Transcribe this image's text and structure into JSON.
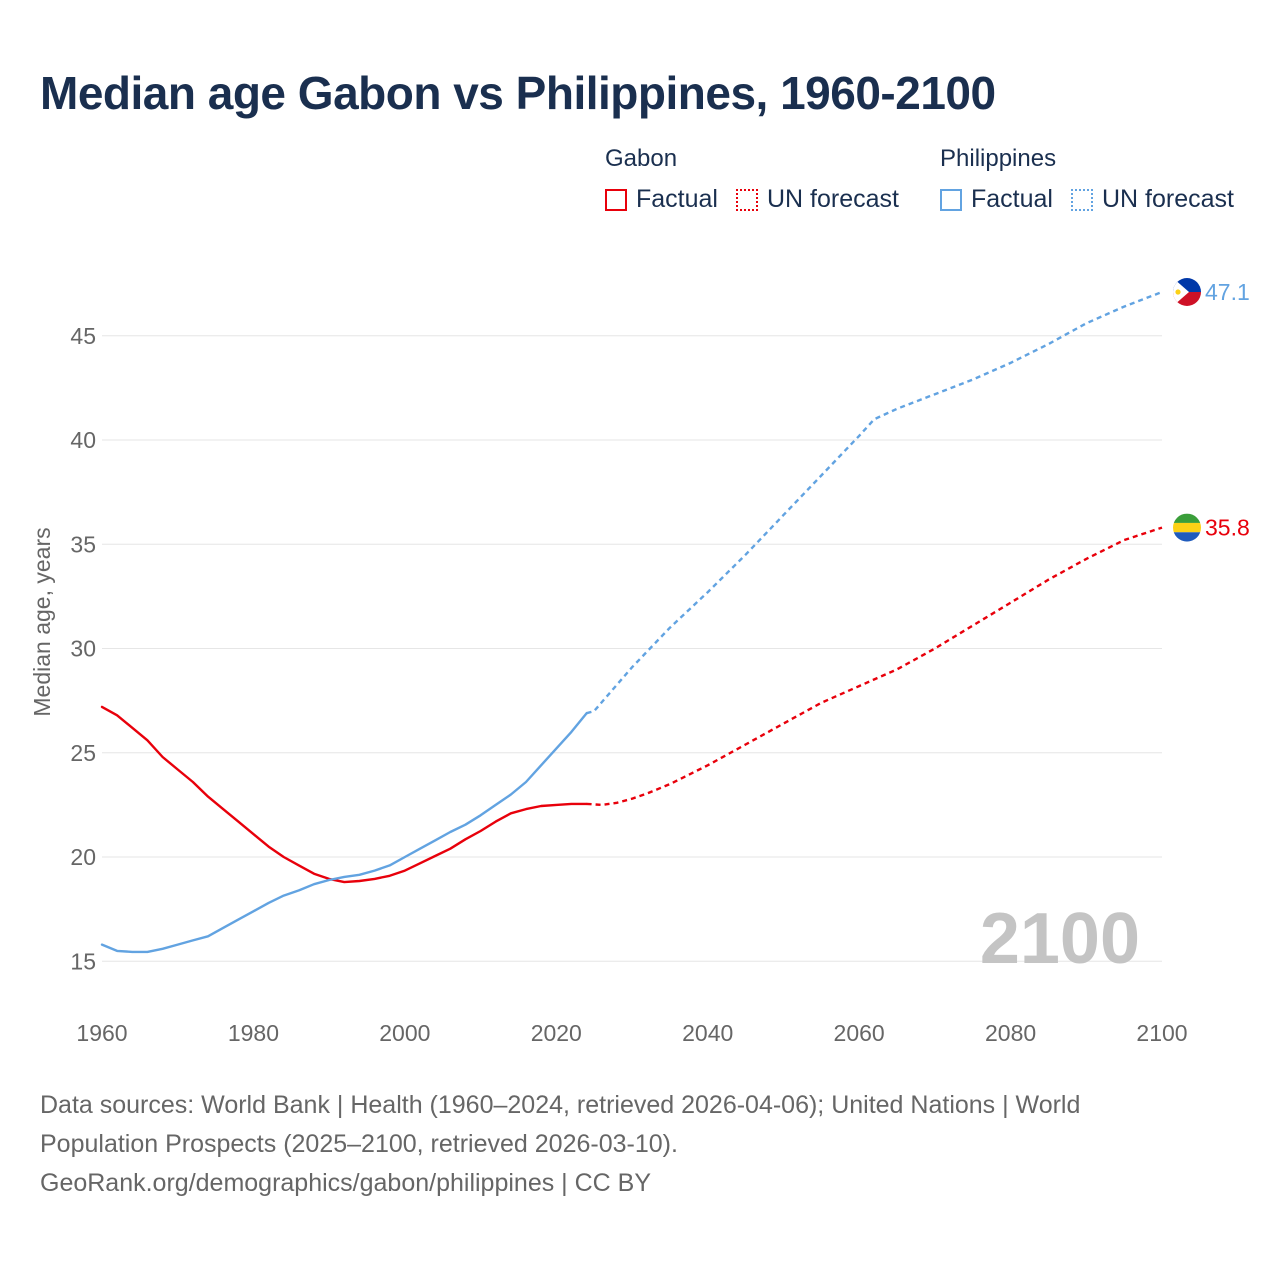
{
  "title": "Median age Gabon vs Philippines, 1960-2100",
  "legend": {
    "groups": [
      {
        "name": "Gabon",
        "factual_label": "Factual",
        "forecast_label": "UN forecast",
        "color": "#e8000b"
      },
      {
        "name": "Philippines",
        "factual_label": "Factual",
        "forecast_label": "UN forecast",
        "color": "#62a3e1"
      }
    ]
  },
  "watermark_year": "2100",
  "footer": {
    "line1": "Data sources: World Bank | Health (1960–2024, retrieved 2026-04-06); United Nations | World",
    "line2": "Population Prospects (2025–2100, retrieved 2026-03-10).",
    "line3": "GeoRank.org/demographics/gabon/philippines | CC BY"
  },
  "colors": {
    "gabon": "#e8000b",
    "philippines": "#62a3e1",
    "grid": "#e6e6e6",
    "axis_text": "#666666"
  },
  "chart_data": {
    "type": "line",
    "title": "Median age Gabon vs Philippines, 1960-2100",
    "xlabel": "",
    "ylabel": "Median age, years",
    "xlim": [
      1960,
      2100
    ],
    "ylim": [
      13,
      47.1
    ],
    "x_ticks": [
      1960,
      1980,
      2000,
      2020,
      2040,
      2060,
      2080,
      2100
    ],
    "y_ticks": [
      15,
      20,
      25,
      30,
      35,
      40,
      45
    ],
    "grid": true,
    "legend_position": "top-right",
    "series": [
      {
        "name": "Gabon",
        "color": "#e8000b",
        "end_label": "35.8",
        "factual": [
          [
            1960,
            27.2
          ],
          [
            1962,
            26.8
          ],
          [
            1964,
            26.2
          ],
          [
            1966,
            25.6
          ],
          [
            1968,
            24.8
          ],
          [
            1970,
            24.2
          ],
          [
            1972,
            23.6
          ],
          [
            1974,
            22.9
          ],
          [
            1976,
            22.3
          ],
          [
            1978,
            21.7
          ],
          [
            1980,
            21.1
          ],
          [
            1982,
            20.5
          ],
          [
            1984,
            20.0
          ],
          [
            1986,
            19.6
          ],
          [
            1988,
            19.2
          ],
          [
            1990,
            18.95
          ],
          [
            1992,
            18.8
          ],
          [
            1994,
            18.85
          ],
          [
            1996,
            18.95
          ],
          [
            1998,
            19.1
          ],
          [
            2000,
            19.35
          ],
          [
            2002,
            19.7
          ],
          [
            2004,
            20.05
          ],
          [
            2006,
            20.4
          ],
          [
            2008,
            20.85
          ],
          [
            2010,
            21.25
          ],
          [
            2012,
            21.7
          ],
          [
            2014,
            22.1
          ],
          [
            2016,
            22.3
          ],
          [
            2018,
            22.45
          ],
          [
            2020,
            22.5
          ],
          [
            2022,
            22.55
          ],
          [
            2024,
            22.55
          ]
        ],
        "forecast": [
          [
            2024,
            22.55
          ],
          [
            2026,
            22.5
          ],
          [
            2028,
            22.6
          ],
          [
            2030,
            22.8
          ],
          [
            2032,
            23.05
          ],
          [
            2035,
            23.5
          ],
          [
            2040,
            24.4
          ],
          [
            2045,
            25.4
          ],
          [
            2050,
            26.4
          ],
          [
            2055,
            27.4
          ],
          [
            2060,
            28.2
          ],
          [
            2065,
            29.0
          ],
          [
            2070,
            30.0
          ],
          [
            2075,
            31.1
          ],
          [
            2080,
            32.2
          ],
          [
            2085,
            33.3
          ],
          [
            2090,
            34.3
          ],
          [
            2095,
            35.2
          ],
          [
            2100,
            35.8
          ]
        ]
      },
      {
        "name": "Philippines",
        "color": "#62a3e1",
        "end_label": "47.1",
        "factual": [
          [
            1960,
            15.8
          ],
          [
            1962,
            15.5
          ],
          [
            1964,
            15.45
          ],
          [
            1966,
            15.45
          ],
          [
            1968,
            15.6
          ],
          [
            1970,
            15.8
          ],
          [
            1972,
            16.0
          ],
          [
            1974,
            16.2
          ],
          [
            1976,
            16.6
          ],
          [
            1978,
            17.0
          ],
          [
            1980,
            17.4
          ],
          [
            1982,
            17.8
          ],
          [
            1984,
            18.15
          ],
          [
            1986,
            18.4
          ],
          [
            1988,
            18.7
          ],
          [
            1990,
            18.9
          ],
          [
            1992,
            19.05
          ],
          [
            1994,
            19.15
          ],
          [
            1996,
            19.35
          ],
          [
            1998,
            19.6
          ],
          [
            2000,
            20.0
          ],
          [
            2002,
            20.4
          ],
          [
            2004,
            20.8
          ],
          [
            2006,
            21.2
          ],
          [
            2008,
            21.55
          ],
          [
            2010,
            22.0
          ],
          [
            2012,
            22.5
          ],
          [
            2014,
            23.0
          ],
          [
            2016,
            23.6
          ],
          [
            2018,
            24.4
          ],
          [
            2020,
            25.2
          ],
          [
            2022,
            26.0
          ],
          [
            2024,
            26.9
          ]
        ],
        "forecast": [
          [
            2024,
            26.9
          ],
          [
            2025,
            27.0
          ],
          [
            2030,
            29.1
          ],
          [
            2035,
            31.0
          ],
          [
            2040,
            32.7
          ],
          [
            2045,
            34.5
          ],
          [
            2050,
            36.4
          ],
          [
            2055,
            38.3
          ],
          [
            2060,
            40.2
          ],
          [
            2062,
            41.0
          ],
          [
            2065,
            41.5
          ],
          [
            2070,
            42.2
          ],
          [
            2075,
            42.9
          ],
          [
            2080,
            43.7
          ],
          [
            2085,
            44.6
          ],
          [
            2090,
            45.6
          ],
          [
            2095,
            46.4
          ],
          [
            2100,
            47.1
          ]
        ]
      }
    ]
  }
}
